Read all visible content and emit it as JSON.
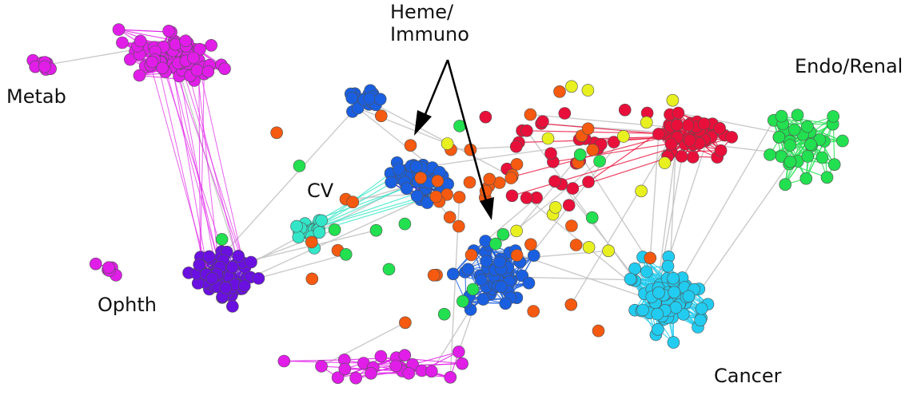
{
  "figure": {
    "labels": {
      "metab": "Metab",
      "cv": "CV",
      "ophth": "Ophth",
      "heme_line1": "Heme/",
      "heme_line2": "Immuno",
      "endo_renal": "Endo/Renal",
      "cancer": "Cancer"
    },
    "colors": {
      "metab": "#e01ee8",
      "cv": "#33e6c8",
      "ophth": "#6a10e0",
      "heme": "#1a5fe0",
      "heme_dark": "#1020d0",
      "endo": "#e8103a",
      "renal": "#22e050",
      "cancer": "#22ccf0",
      "orange": "#f55a10",
      "yellow": "#e8f020",
      "neutral_edge": "#c4c4c4",
      "arrow": "#000000",
      "node_outline": "#505050"
    }
  }
}
